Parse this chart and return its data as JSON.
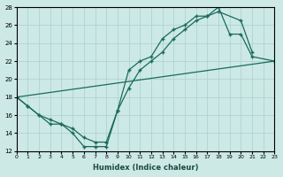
{
  "xlabel": "Humidex (Indice chaleur)",
  "bg_color": "#cce9e6",
  "grid_color": "#aad0cc",
  "line_color": "#1a6b5a",
  "xlim": [
    0,
    23
  ],
  "ylim": [
    12,
    28
  ],
  "xticks": [
    0,
    1,
    2,
    3,
    4,
    5,
    6,
    7,
    8,
    9,
    10,
    11,
    12,
    13,
    14,
    15,
    16,
    17,
    18,
    19,
    20,
    21,
    22,
    23
  ],
  "yticks": [
    12,
    14,
    16,
    18,
    20,
    22,
    24,
    26,
    28
  ],
  "series1_x": [
    0,
    1,
    2,
    3,
    4,
    5,
    6,
    7,
    8,
    9,
    10,
    11,
    12,
    13,
    14,
    15,
    16,
    17,
    18,
    20,
    21
  ],
  "series1_y": [
    18,
    17,
    16,
    15.5,
    15,
    14.5,
    13.5,
    13,
    13,
    16.5,
    19,
    21,
    22,
    23,
    24.5,
    25.5,
    26.5,
    27,
    27.5,
    26.5,
    23
  ],
  "series2_x": [
    0,
    1,
    2,
    3,
    4,
    5,
    6,
    7,
    8,
    9,
    10,
    11,
    12,
    13,
    14,
    15,
    16,
    17,
    18,
    19,
    20,
    21,
    23
  ],
  "series2_y": [
    18,
    17,
    16,
    15,
    15,
    14,
    12.5,
    12.5,
    12.5,
    16.5,
    21,
    22,
    22.5,
    24.5,
    25.5,
    26,
    27,
    27,
    28,
    25,
    25,
    22.5,
    22
  ],
  "series3_x": [
    0,
    23
  ],
  "series3_y": [
    18,
    22
  ]
}
